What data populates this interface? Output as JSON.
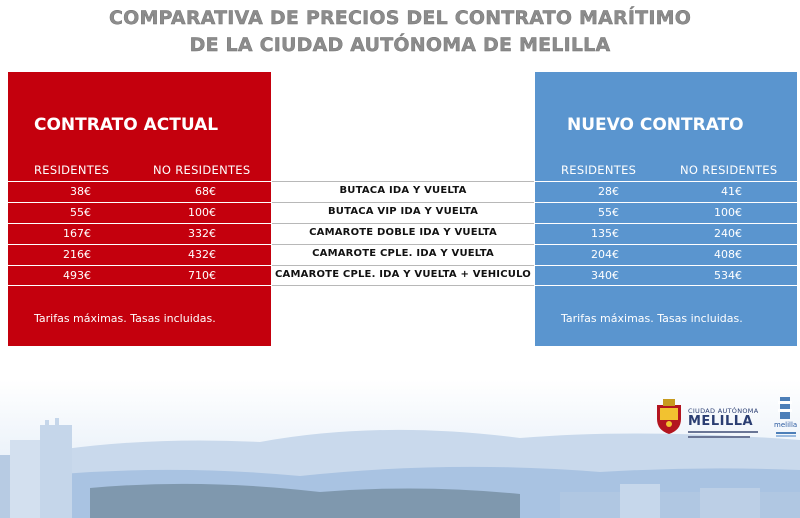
{
  "title": {
    "line1": "COMPARATIVA DE PRECIOS DEL CONTRATO MARÍTIMO",
    "line2": "DE LA CIUDAD AUTÓNOMA DE MELILLA"
  },
  "current": {
    "heading": "CONTRATO ACTUAL",
    "col_residents": "RESIDENTES",
    "col_non_residents": "NO RESIDENTES",
    "footnote": "Tarifas máximas. Tasas incluidas.",
    "rows": [
      {
        "res": "38€",
        "nonres": "68€"
      },
      {
        "res": "55€",
        "nonres": "100€"
      },
      {
        "res": "167€",
        "nonres": "332€"
      },
      {
        "res": "216€",
        "nonres": "432€"
      },
      {
        "res": "493€",
        "nonres": "710€"
      }
    ]
  },
  "services": [
    "BUTACA IDA Y VUELTA",
    "BUTACA VIP IDA Y VUELTA",
    "CAMAROTE  DOBLE IDA Y VUELTA",
    "CAMAROTE CPLE. IDA Y VUELTA",
    "CAMAROTE CPLE. IDA Y VUELTA + VEHICULO"
  ],
  "new": {
    "heading": "NUEVO CONTRATO",
    "col_residents": "RESIDENTES",
    "col_non_residents": "NO RESIDENTES",
    "footnote": "Tarifas máximas. Tasas incluidas.",
    "rows": [
      {
        "res": "28€",
        "nonres": "41€"
      },
      {
        "res": "55€",
        "nonres": "100€"
      },
      {
        "res": "135€",
        "nonres": "240€"
      },
      {
        "res": "204€",
        "nonres": "408€"
      },
      {
        "res": "340€",
        "nonres": "534€"
      }
    ]
  },
  "logos": {
    "city_line1": "CIUDAD AUTÓNOMA",
    "city_line2": "MELILLA",
    "small_brand": "melilla"
  },
  "colors": {
    "red": "#c4000d",
    "blue": "#5a95cf",
    "title_gray": "#8c8c8c"
  }
}
